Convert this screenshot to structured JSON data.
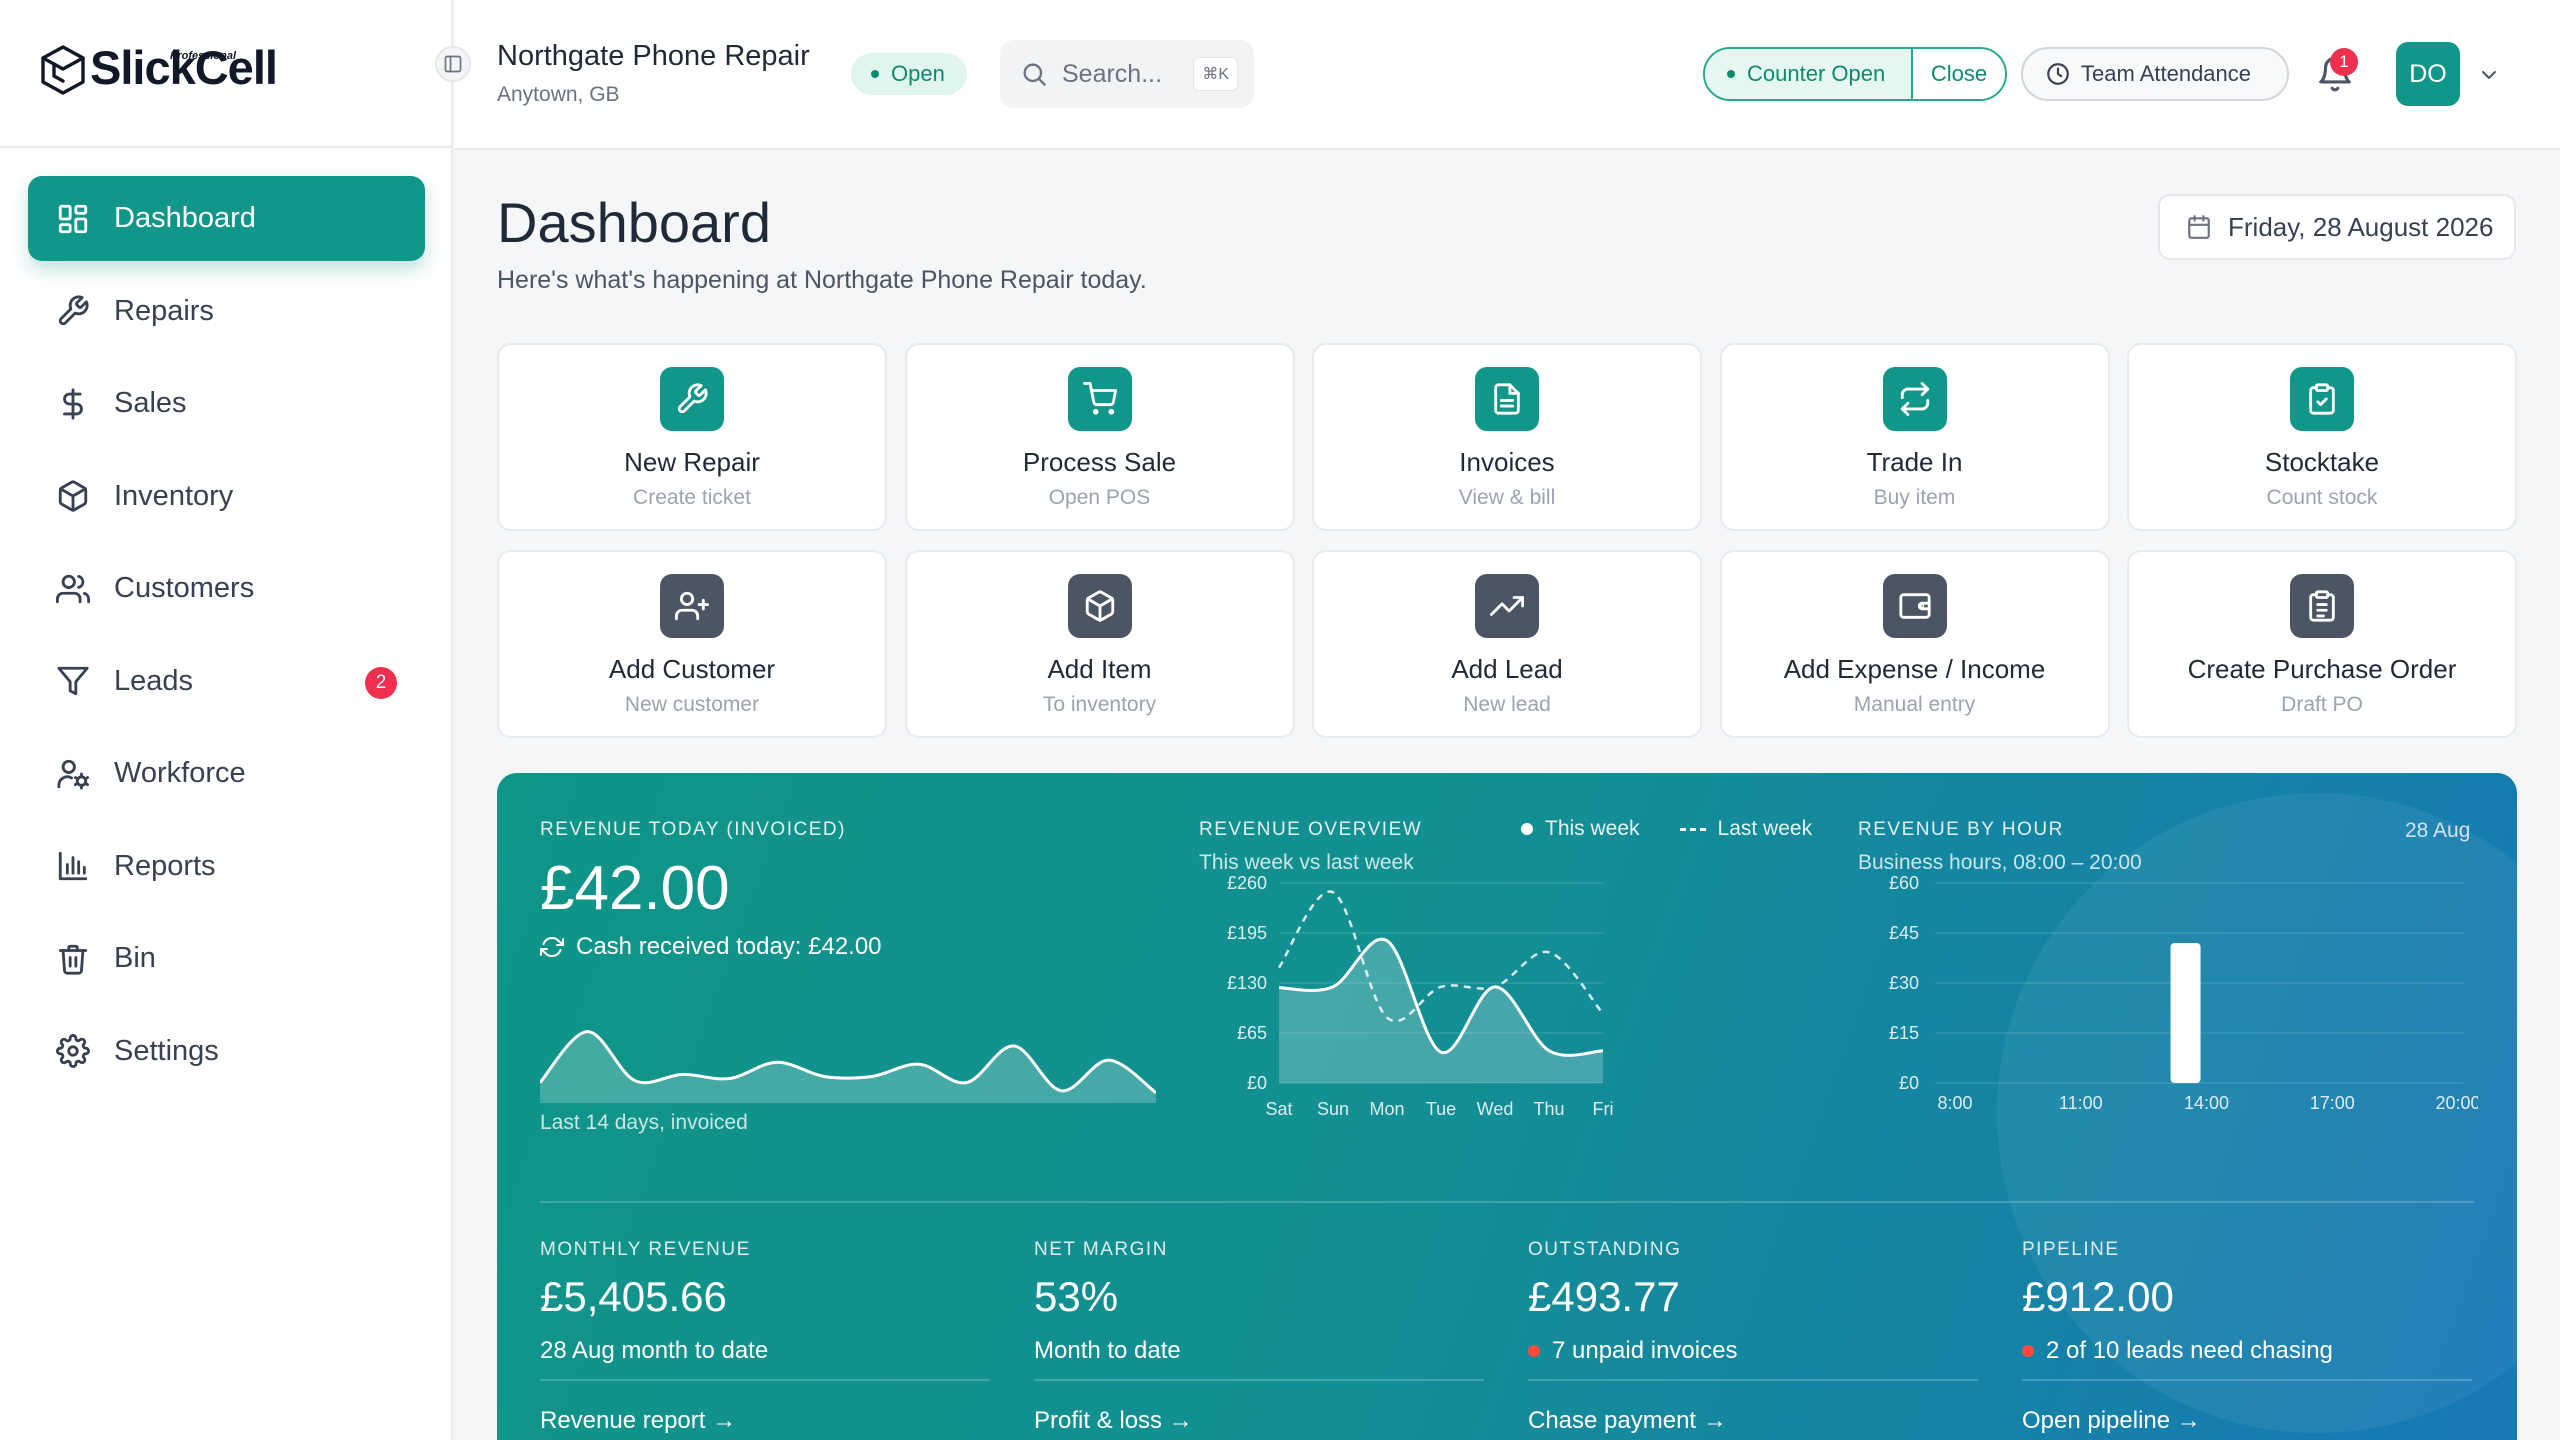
{
  "brand": {
    "name": "SlickCell",
    "tier": "Professional"
  },
  "sidebar": {
    "items": [
      {
        "label": "Dashboard",
        "icon": "dashboard-grid-icon",
        "active": true
      },
      {
        "label": "Repairs",
        "icon": "wrench-icon"
      },
      {
        "label": "Sales",
        "icon": "dollar-icon"
      },
      {
        "label": "Inventory",
        "icon": "box-icon"
      },
      {
        "label": "Customers",
        "icon": "users-icon"
      },
      {
        "label": "Leads",
        "icon": "funnel-icon",
        "badge": "2"
      },
      {
        "label": "Workforce",
        "icon": "user-cog-icon"
      },
      {
        "label": "Reports",
        "icon": "bar-chart-icon"
      },
      {
        "label": "Bin",
        "icon": "trash-icon"
      },
      {
        "label": "Settings",
        "icon": "gear-icon"
      }
    ]
  },
  "header": {
    "store_name": "Northgate Phone Repair",
    "store_location": "Anytown, GB",
    "status": "Open",
    "search_placeholder": "Search...",
    "search_shortcut": "⌘K",
    "counter_status": "Counter Open",
    "counter_close": "Close",
    "attendance": "Team Attendance",
    "notification_count": "1",
    "user_initials": "DO"
  },
  "page": {
    "title": "Dashboard",
    "subtitle": "Here's what's happening at Northgate Phone Repair today.",
    "date": "Friday, 28 August 2026"
  },
  "quick_actions": [
    {
      "label": "New Repair",
      "sub": "Create ticket",
      "icon": "wrench-icon",
      "tone": "teal"
    },
    {
      "label": "Process Sale",
      "sub": "Open POS",
      "icon": "cart-icon",
      "tone": "teal"
    },
    {
      "label": "Invoices",
      "sub": "View & bill",
      "icon": "document-icon",
      "tone": "teal"
    },
    {
      "label": "Trade In",
      "sub": "Buy item",
      "icon": "swap-icon",
      "tone": "teal"
    },
    {
      "label": "Stocktake",
      "sub": "Count stock",
      "icon": "clipboard-check-icon",
      "tone": "teal"
    },
    {
      "label": "Add Customer",
      "sub": "New customer",
      "icon": "user-plus-icon",
      "tone": "slate"
    },
    {
      "label": "Add Item",
      "sub": "To inventory",
      "icon": "box-icon",
      "tone": "slate"
    },
    {
      "label": "Add Lead",
      "sub": "New lead",
      "icon": "trending-up-icon",
      "tone": "slate"
    },
    {
      "label": "Add Expense / Income",
      "sub": "Manual entry",
      "icon": "wallet-icon",
      "tone": "slate"
    },
    {
      "label": "Create Purchase Order",
      "sub": "Draft PO",
      "icon": "clipboard-list-icon",
      "tone": "slate"
    }
  ],
  "revenue": {
    "today_label": "REVENUE TODAY (INVOICED)",
    "today_value": "£42.00",
    "cash_line": "Cash received today: £42.00",
    "sparkline_caption": "Last 14 days, invoiced",
    "overview_label": "REVENUE OVERVIEW",
    "overview_sub": "This week vs last week",
    "legend_this": "This week",
    "legend_last": "Last week",
    "hour_label": "REVENUE BY HOUR",
    "hour_sub": "Business hours, 08:00 – 20:00",
    "hour_date": "28 Aug"
  },
  "stats": [
    {
      "label": "MONTHLY REVENUE",
      "value": "£5,405.66",
      "note": "28 Aug month to date",
      "alert": false,
      "link": "Revenue report →"
    },
    {
      "label": "NET MARGIN",
      "value": "53%",
      "note": "Month to date",
      "alert": false,
      "link": "Profit & loss →"
    },
    {
      "label": "OUTSTANDING",
      "value": "£493.77",
      "note": "7 unpaid invoices",
      "alert": true,
      "link": "Chase payment →"
    },
    {
      "label": "PIPELINE",
      "value": "£912.00",
      "note": "2 of 10 leads need chasing",
      "alert": true,
      "link": "Open pipeline →"
    }
  ],
  "chart_data": [
    {
      "type": "area",
      "caption": "Last 14 days, invoiced",
      "values": [
        20,
        70,
        22,
        28,
        24,
        40,
        26,
        26,
        38,
        20,
        56,
        12,
        42,
        10
      ],
      "ylim": [
        0,
        100
      ]
    },
    {
      "type": "line",
      "title": "REVENUE OVERVIEW",
      "subtitle": "This week vs last week",
      "categories": [
        "Sat",
        "Sun",
        "Mon",
        "Tue",
        "Wed",
        "Thu",
        "Fri"
      ],
      "series": [
        {
          "name": "This week",
          "values": [
            124,
            125,
            185,
            40,
            125,
            42,
            42
          ],
          "style": "solid-area"
        },
        {
          "name": "Last week",
          "values": [
            150,
            248,
            85,
            125,
            125,
            170,
            90
          ],
          "style": "dashed"
        }
      ],
      "yticks": [
        "£0",
        "£65",
        "£130",
        "£195",
        "£260"
      ],
      "ylim": [
        0,
        260
      ]
    },
    {
      "type": "bar",
      "title": "REVENUE BY HOUR",
      "subtitle": "Business hours, 08:00 – 20:00",
      "x": [
        8,
        9,
        10,
        11,
        12,
        13,
        14,
        15,
        16,
        17,
        18,
        19,
        20
      ],
      "values": [
        0,
        0,
        0,
        0,
        0,
        42,
        0,
        0,
        0,
        0,
        0,
        0,
        0
      ],
      "xticks": [
        "8:00",
        "11:00",
        "14:00",
        "17:00",
        "20:00"
      ],
      "yticks": [
        "£0",
        "£15",
        "£30",
        "£45",
        "£60"
      ],
      "ylim": [
        0,
        60
      ]
    }
  ]
}
